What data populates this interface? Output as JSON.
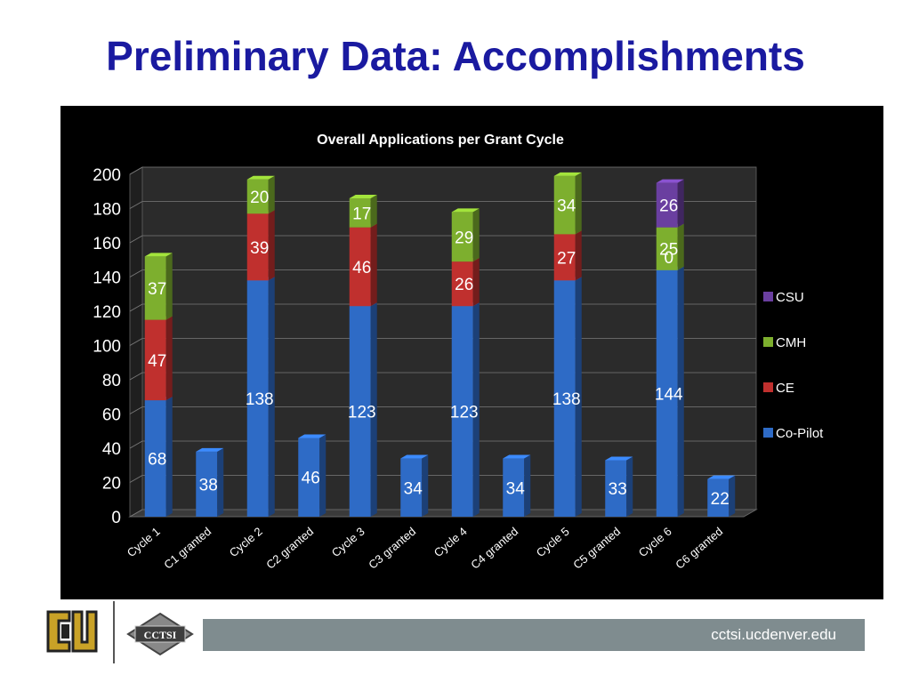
{
  "slide": {
    "title": "Preliminary Data: Accomplishments",
    "footer_url": "cctsi.ucdenver.edu",
    "logo_text": "CCTSI"
  },
  "colors": {
    "title": "#1a1aa0",
    "co_pilot": "#2e6bc6",
    "ce": "#c0302e",
    "cmh": "#7daf2e",
    "csu": "#6a3fa0",
    "panel_bg": "#000000",
    "footer_bar": "#7f8c8f"
  },
  "chart_data": {
    "type": "bar",
    "stacked": true,
    "title": "Overall Applications per Grant Cycle",
    "categories": [
      "Cycle 1",
      "C1 granted",
      "Cycle 2",
      "C2 granted",
      "Cycle 3",
      "C3 granted",
      "Cycle 4",
      "C4 granted",
      "Cycle 5",
      "C5 granted",
      "Cycle 6",
      "C6 granted"
    ],
    "series": [
      {
        "name": "Co-Pilot",
        "color": "#2e6bc6",
        "values": [
          68,
          38,
          138,
          46,
          123,
          34,
          123,
          34,
          138,
          33,
          144,
          22
        ]
      },
      {
        "name": "CE",
        "color": "#c0302e",
        "values": [
          47,
          null,
          39,
          null,
          46,
          null,
          26,
          null,
          27,
          null,
          null,
          null
        ]
      },
      {
        "name": "CMH",
        "color": "#7daf2e",
        "values": [
          37,
          null,
          20,
          null,
          17,
          null,
          29,
          null,
          34,
          null,
          25,
          null
        ]
      },
      {
        "name": "CSU",
        "color": "#6a3fa0",
        "values": [
          null,
          null,
          null,
          null,
          null,
          null,
          null,
          null,
          null,
          null,
          26,
          null
        ]
      }
    ],
    "value_labels": [
      [
        "68",
        "38",
        "138",
        "46",
        "123",
        "34",
        "123",
        "34",
        "138",
        "33",
        "144",
        "22"
      ],
      [
        "47",
        "",
        "39",
        "",
        "46",
        "",
        "26",
        "",
        "27",
        "",
        "0",
        ""
      ],
      [
        "37",
        "",
        "20",
        "",
        "17",
        "",
        "29",
        "",
        "34",
        "",
        "25",
        ""
      ],
      [
        "",
        "",
        "",
        "",
        "",
        "",
        "",
        "",
        "",
        "",
        "26",
        ""
      ]
    ],
    "y_ticks": [
      "0",
      "20",
      "40",
      "60",
      "80",
      "100",
      "120",
      "140",
      "160",
      "180",
      "200"
    ],
    "ylim": [
      0,
      200
    ],
    "legend": [
      "CSU",
      "CMH",
      "CE",
      "Co-Pilot"
    ],
    "legend_position": "right",
    "grid": true
  }
}
